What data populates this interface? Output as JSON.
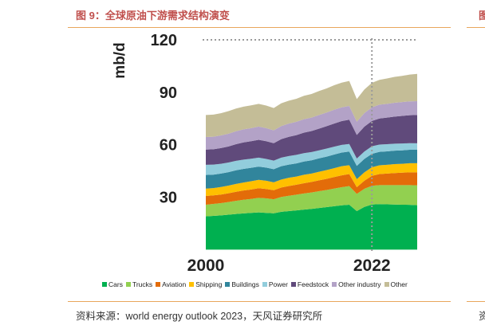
{
  "figure": {
    "title": "图 9：全球原油下游需求结构演变",
    "source": "资料来源：world  energy outlook 2023，天风证券研究所",
    "right_title_fragment": "图",
    "right_source_fragment": "资"
  },
  "colors": {
    "accent_title": "#c0504d",
    "rule": "#e8a65c",
    "dotted": "#9a9a9a",
    "axis_text": "#222222"
  },
  "chart_data": {
    "type": "area",
    "stacked": true,
    "title": "",
    "ylabel": "mb/d",
    "xlabel": "",
    "ylim": [
      0,
      125
    ],
    "yticks": [
      30,
      60,
      90,
      120
    ],
    "xlim": [
      2000,
      2028
    ],
    "xtick_labels": [
      {
        "value": 2000,
        "label": "2000"
      },
      {
        "value": 2022,
        "label": "2022"
      }
    ],
    "reference_lines": {
      "horizontal": 120,
      "vertical": 2022
    },
    "x": [
      2000,
      2001,
      2002,
      2003,
      2004,
      2005,
      2006,
      2007,
      2008,
      2009,
      2010,
      2011,
      2012,
      2013,
      2014,
      2015,
      2016,
      2017,
      2018,
      2019,
      2020,
      2021,
      2022,
      2023,
      2024,
      2025,
      2026,
      2027,
      2028
    ],
    "series": [
      {
        "name": "Cars",
        "color": "#00b050",
        "values": [
          19.0,
          19.3,
          19.6,
          20.0,
          20.4,
          20.7,
          21.0,
          21.3,
          21.0,
          20.8,
          21.6,
          22.0,
          22.4,
          22.9,
          23.3,
          23.8,
          24.3,
          24.8,
          25.3,
          25.7,
          22.0,
          24.4,
          25.8,
          26.0,
          25.9,
          25.8,
          25.7,
          25.6,
          25.4
        ]
      },
      {
        "name": "Trucks",
        "color": "#92d050",
        "values": [
          6.7,
          6.8,
          7.0,
          7.2,
          7.5,
          7.8,
          8.0,
          8.3,
          8.3,
          8.0,
          8.5,
          8.8,
          9.0,
          9.2,
          9.4,
          9.6,
          9.8,
          10.1,
          10.4,
          10.6,
          9.9,
          10.4,
          10.7,
          10.9,
          11.0,
          11.1,
          11.2,
          11.3,
          11.4
        ]
      },
      {
        "name": "Aviation",
        "color": "#e36c09",
        "values": [
          5.0,
          4.9,
          4.9,
          5.0,
          5.2,
          5.3,
          5.4,
          5.5,
          5.4,
          5.2,
          5.4,
          5.6,
          5.7,
          5.9,
          6.0,
          6.2,
          6.4,
          6.6,
          6.8,
          6.9,
          3.8,
          4.6,
          5.7,
          6.3,
          6.6,
          6.9,
          7.1,
          7.3,
          7.4
        ]
      },
      {
        "name": "Shipping",
        "color": "#ffc000",
        "values": [
          4.2,
          4.2,
          4.3,
          4.4,
          4.5,
          4.6,
          4.7,
          4.8,
          4.7,
          4.5,
          4.6,
          4.7,
          4.7,
          4.8,
          4.8,
          4.9,
          5.0,
          5.1,
          5.2,
          5.1,
          4.6,
          4.8,
          4.9,
          5.0,
          5.0,
          5.1,
          5.1,
          5.2,
          5.2
        ]
      },
      {
        "name": "Buildings",
        "color": "#31859c",
        "values": [
          7.8,
          7.7,
          7.7,
          7.7,
          7.8,
          7.8,
          7.7,
          7.6,
          7.5,
          7.5,
          7.6,
          7.5,
          7.5,
          7.6,
          7.6,
          7.7,
          7.7,
          7.8,
          7.8,
          7.8,
          7.6,
          7.7,
          7.7,
          7.7,
          7.7,
          7.7,
          7.7,
          7.7,
          7.7
        ]
      },
      {
        "name": "Power",
        "color": "#92cddc",
        "values": [
          5.8,
          5.7,
          5.6,
          5.5,
          5.4,
          5.3,
          5.2,
          5.1,
          5.0,
          4.9,
          4.9,
          4.9,
          4.9,
          4.8,
          4.7,
          4.6,
          4.6,
          4.5,
          4.4,
          4.3,
          4.2,
          4.2,
          4.3,
          4.2,
          4.1,
          4.0,
          3.9,
          3.8,
          3.7
        ]
      },
      {
        "name": "Feedstock",
        "color": "#604a7b",
        "values": [
          8.7,
          8.8,
          9.0,
          9.2,
          9.5,
          9.8,
          10.0,
          10.2,
          10.1,
          10.0,
          10.6,
          11.0,
          11.3,
          11.7,
          12.0,
          12.4,
          12.8,
          13.2,
          13.6,
          13.9,
          13.5,
          14.2,
          14.5,
          14.9,
          15.2,
          15.5,
          15.8,
          16.0,
          16.2
        ]
      },
      {
        "name": "Other industry",
        "color": "#b3a2c7",
        "values": [
          7.2,
          7.2,
          7.2,
          7.3,
          7.4,
          7.5,
          7.5,
          7.6,
          7.5,
          7.3,
          7.5,
          7.6,
          7.6,
          7.7,
          7.7,
          7.8,
          7.8,
          7.9,
          7.9,
          7.9,
          7.6,
          7.8,
          7.8,
          7.9,
          7.9,
          7.9,
          7.9,
          7.9,
          7.9
        ]
      },
      {
        "name": "Other",
        "color": "#c4bd97",
        "values": [
          12.6,
          12.6,
          12.7,
          12.9,
          13.0,
          13.0,
          13.0,
          13.0,
          12.9,
          12.8,
          13.0,
          13.1,
          13.2,
          13.4,
          13.5,
          13.7,
          13.8,
          14.0,
          14.1,
          14.3,
          12.9,
          13.5,
          14.0,
          14.2,
          14.5,
          14.8,
          15.0,
          15.3,
          15.6
        ]
      }
    ]
  }
}
